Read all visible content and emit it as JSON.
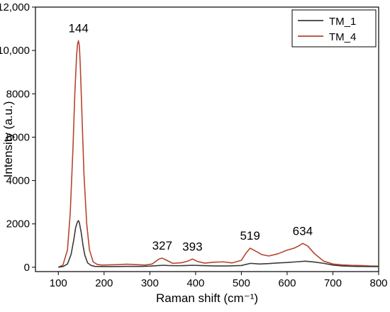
{
  "chart_data": {
    "type": "line",
    "xlabel": "Raman shift (cm⁻¹)",
    "ylabel": "Intensity (a.u.)",
    "xlim": [
      50,
      800
    ],
    "ylim": [
      -200,
      12000
    ],
    "x_ticks": [
      100,
      200,
      300,
      400,
      500,
      600,
      700,
      800
    ],
    "x_tick_labels": [
      "100",
      "200",
      "300",
      "400",
      "500",
      "600",
      "700",
      "800"
    ],
    "y_ticks": [
      0,
      2000,
      4000,
      6000,
      8000,
      10000,
      12000
    ],
    "y_tick_labels": [
      "0",
      "2000",
      "4000",
      "6000",
      "8000",
      "10,000",
      "12,000"
    ],
    "legend_position": "top-right",
    "series": [
      {
        "name": "TM_1",
        "color": "#3a3a3a",
        "x": [
          100,
          110,
          120,
          128,
          134,
          138,
          142,
          144,
          146,
          150,
          154,
          158,
          164,
          172,
          180,
          200,
          220,
          250,
          280,
          300,
          320,
          330,
          340,
          360,
          380,
          393,
          410,
          440,
          470,
          500,
          520,
          540,
          560,
          580,
          600,
          620,
          640,
          660,
          680,
          700,
          720,
          750,
          780,
          800
        ],
        "y": [
          0,
          30,
          150,
          600,
          1300,
          1850,
          2100,
          2150,
          2050,
          1600,
          1000,
          550,
          200,
          80,
          40,
          30,
          30,
          40,
          40,
          50,
          80,
          90,
          80,
          70,
          80,
          90,
          80,
          60,
          60,
          80,
          180,
          150,
          170,
          200,
          220,
          250,
          280,
          240,
          180,
          100,
          60,
          40,
          30,
          30
        ]
      },
      {
        "name": "TM_4",
        "color": "#b5452f",
        "x": [
          100,
          110,
          120,
          126,
          132,
          136,
          140,
          142,
          144,
          146,
          148,
          152,
          156,
          162,
          168,
          176,
          185,
          195,
          210,
          230,
          250,
          270,
          290,
          305,
          320,
          327,
          335,
          350,
          370,
          385,
          393,
          405,
          420,
          440,
          460,
          480,
          500,
          510,
          519,
          530,
          545,
          560,
          580,
          600,
          615,
          625,
          634,
          645,
          660,
          680,
          700,
          720,
          740,
          760,
          780,
          800
        ],
        "y": [
          0,
          100,
          800,
          2500,
          5500,
          8000,
          9800,
          10300,
          10450,
          10200,
          9300,
          6800,
          4300,
          2000,
          800,
          250,
          130,
          100,
          110,
          120,
          140,
          120,
          100,
          150,
          380,
          420,
          340,
          180,
          210,
          300,
          380,
          260,
          190,
          230,
          250,
          200,
          320,
          650,
          880,
          760,
          580,
          520,
          620,
          790,
          880,
          980,
          1100,
          980,
          620,
          280,
          150,
          110,
          90,
          80,
          60,
          50
        ]
      }
    ],
    "annotations": [
      {
        "text": "144",
        "x": 144,
        "y": 10450
      },
      {
        "text": "327",
        "x": 327,
        "y": 420
      },
      {
        "text": "393",
        "x": 393,
        "y": 380
      },
      {
        "text": "519",
        "x": 519,
        "y": 880
      },
      {
        "text": "634",
        "x": 634,
        "y": 1100
      }
    ]
  }
}
